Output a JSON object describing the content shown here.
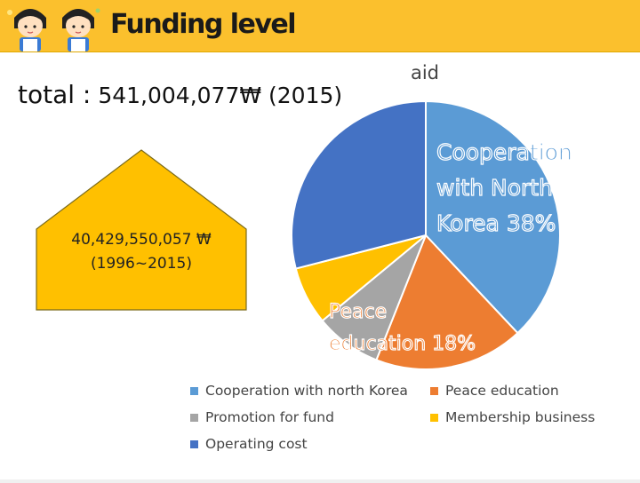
{
  "header": {
    "title": "Funding level"
  },
  "total": {
    "label": "total :",
    "value": "541,004,077₩ (2015)"
  },
  "house": {
    "line1": "40,429,550,057 ₩",
    "line2": "(1996~2015)"
  },
  "colors": {
    "header": "#fbc02d",
    "house": "#ffc000",
    "house_stroke": "#7a6a1a"
  },
  "chart_data": {
    "type": "pie",
    "title": "aid",
    "labels": [
      "Cooperation with north Korea",
      "Peace education",
      "Promotion for fund",
      "Membership business",
      "Operating cost"
    ],
    "values": [
      38,
      18,
      8,
      7,
      29
    ],
    "colors": [
      "#5b9bd5",
      "#ed7d31",
      "#a5a5a5",
      "#ffc000",
      "#4472c4"
    ],
    "data_labels": [
      {
        "index": 0,
        "lines": [
          "Cooperation",
          "with North",
          "Korea 38%"
        ]
      },
      {
        "index": 1,
        "lines": [
          "Peace",
          "education 18%"
        ]
      }
    ],
    "legend_position": "bottom"
  }
}
